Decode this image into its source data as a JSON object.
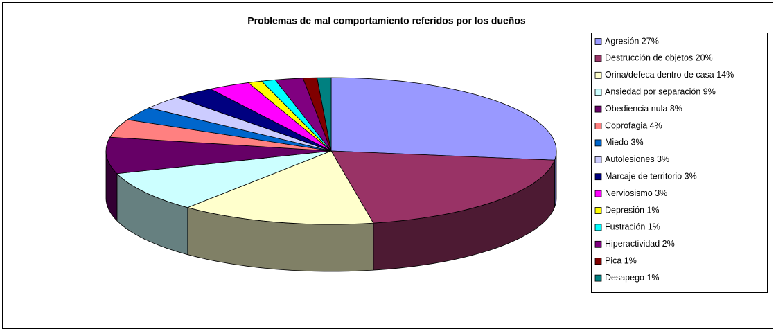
{
  "chart_data": {
    "type": "pie3d",
    "title": "Problemas de mal comportamiento referidos por los dueños",
    "categories": [
      "Agresión 27%",
      "Destrucción de objetos 20%",
      "Orina/defeca dentro de casa 14%",
      "Ansiedad por separación 9%",
      "Obediencia nula 8%",
      "Coprofagia 4%",
      "Miedo 3%",
      "Autolesiones 3%",
      "Marcaje de territorio 3%",
      "Nerviosismo 3%",
      "Depresión 1%",
      "Fustración 1%",
      "Hiperactividad 2%",
      "Pica 1%",
      "Desapego 1%"
    ],
    "values": [
      27,
      20,
      14,
      9,
      8,
      4,
      3,
      3,
      3,
      3,
      1,
      1,
      2,
      1,
      1
    ],
    "colors": [
      "#9999ff",
      "#993366",
      "#ffffcc",
      "#ccffff",
      "#660066",
      "#ff8080",
      "#0066cc",
      "#ccccff",
      "#000080",
      "#ff00ff",
      "#ffff00",
      "#00ffff",
      "#800080",
      "#800000",
      "#008080"
    ],
    "legend": "right"
  }
}
